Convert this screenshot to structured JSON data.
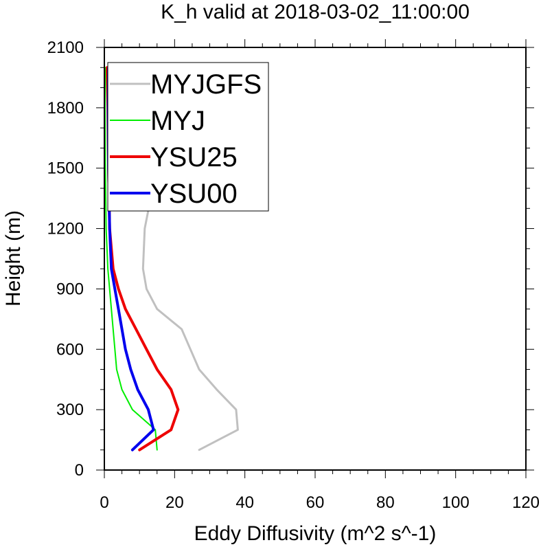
{
  "chart_data": {
    "type": "line",
    "title": "K_h valid at 2018-03-02_11:00:00",
    "xlabel": "Eddy Diffusivity (m^2 s^-1)",
    "ylabel": "Height (m)",
    "xlim": [
      0,
      120
    ],
    "ylim": [
      0,
      2100
    ],
    "x_ticks": [
      "0",
      "20",
      "40",
      "60",
      "80",
      "100",
      "120"
    ],
    "y_ticks": [
      "0",
      "300",
      "600",
      "900",
      "1200",
      "1500",
      "1800",
      "2100"
    ],
    "legend_position": "top-left",
    "series": [
      {
        "name": "MYJGFS",
        "color": "#c0c0c0",
        "width": 3,
        "points": [
          [
            27,
            100
          ],
          [
            38,
            200
          ],
          [
            37.5,
            300
          ],
          [
            32,
            400
          ],
          [
            27,
            500
          ],
          [
            22,
            700
          ],
          [
            15,
            800
          ],
          [
            12,
            900
          ],
          [
            11,
            1000
          ],
          [
            11.5,
            1200
          ],
          [
            16,
            1600
          ],
          [
            19,
            1800
          ],
          [
            20,
            1900
          ],
          [
            19,
            2000
          ]
        ]
      },
      {
        "name": "MYJ",
        "color": "#00ee00",
        "width": 2,
        "points": [
          [
            15,
            100
          ],
          [
            14.5,
            200
          ],
          [
            8,
            300
          ],
          [
            5,
            400
          ],
          [
            3.5,
            500
          ],
          [
            2,
            800
          ],
          [
            1,
            1000
          ],
          [
            0.5,
            1200
          ],
          [
            0.3,
            1500
          ],
          [
            0.2,
            1800
          ],
          [
            0.3,
            2000
          ]
        ]
      },
      {
        "name": "YSU25",
        "color": "#ee0000",
        "width": 4,
        "points": [
          [
            10,
            100
          ],
          [
            19,
            200
          ],
          [
            21,
            300
          ],
          [
            19,
            400
          ],
          [
            15,
            500
          ],
          [
            12,
            600
          ],
          [
            9,
            700
          ],
          [
            6,
            800
          ],
          [
            4,
            900
          ],
          [
            2.5,
            1000
          ],
          [
            1.5,
            1200
          ],
          [
            1.2,
            1500
          ],
          [
            1,
            1800
          ],
          [
            0.8,
            2000
          ]
        ]
      },
      {
        "name": "YSU00",
        "color": "#0000ee",
        "width": 4,
        "points": [
          [
            8,
            100
          ],
          [
            14,
            200
          ],
          [
            12.5,
            300
          ],
          [
            9.5,
            400
          ],
          [
            7.5,
            500
          ],
          [
            6,
            600
          ],
          [
            5,
            700
          ],
          [
            4,
            800
          ],
          [
            3,
            900
          ],
          [
            2,
            1000
          ],
          [
            1.5,
            1200
          ],
          [
            1.2,
            1500
          ],
          [
            1.1,
            1800
          ],
          [
            1.2,
            2000
          ]
        ]
      }
    ]
  }
}
